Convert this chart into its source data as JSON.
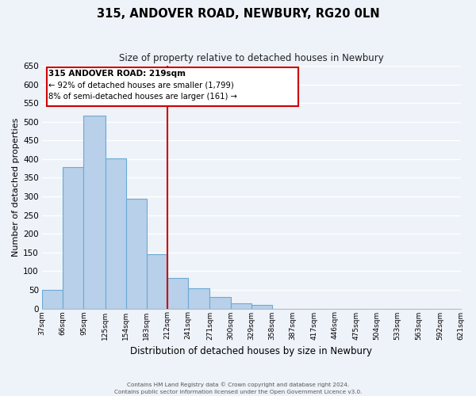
{
  "title": "315, ANDOVER ROAD, NEWBURY, RG20 0LN",
  "subtitle": "Size of property relative to detached houses in Newbury",
  "xlabel": "Distribution of detached houses by size in Newbury",
  "ylabel": "Number of detached properties",
  "bar_values": [
    50,
    378,
    517,
    403,
    293,
    145,
    82,
    55,
    30,
    13,
    10,
    0,
    0,
    0,
    0,
    0,
    0,
    0,
    0,
    0
  ],
  "bin_labels": [
    "37sqm",
    "66sqm",
    "95sqm",
    "125sqm",
    "154sqm",
    "183sqm",
    "212sqm",
    "241sqm",
    "271sqm",
    "300sqm",
    "329sqm",
    "358sqm",
    "387sqm",
    "417sqm",
    "446sqm",
    "475sqm",
    "504sqm",
    "533sqm",
    "563sqm",
    "592sqm",
    "621sqm"
  ],
  "bin_edges": [
    37,
    66,
    95,
    125,
    154,
    183,
    212,
    241,
    271,
    300,
    329,
    358,
    387,
    417,
    446,
    475,
    504,
    533,
    563,
    592,
    621
  ],
  "bar_color": "#b8d0ea",
  "bar_edge_color": "#6aaad4",
  "vline_x_index": 6,
  "vline_color": "#cc0000",
  "ylim": [
    0,
    650
  ],
  "yticks": [
    0,
    50,
    100,
    150,
    200,
    250,
    300,
    350,
    400,
    450,
    500,
    550,
    600,
    650
  ],
  "annotation_title": "315 ANDOVER ROAD: 219sqm",
  "annotation_line1": "← 92% of detached houses are smaller (1,799)",
  "annotation_line2": "8% of semi-detached houses are larger (161) →",
  "annotation_box_color": "#ffffff",
  "annotation_box_edge": "#cc0000",
  "footer_line1": "Contains HM Land Registry data © Crown copyright and database right 2024.",
  "footer_line2": "Contains public sector information licensed under the Open Government Licence v3.0.",
  "background_color": "#eef2f9",
  "plot_bg_color": "#eef2f9",
  "grid_color": "#ffffff"
}
